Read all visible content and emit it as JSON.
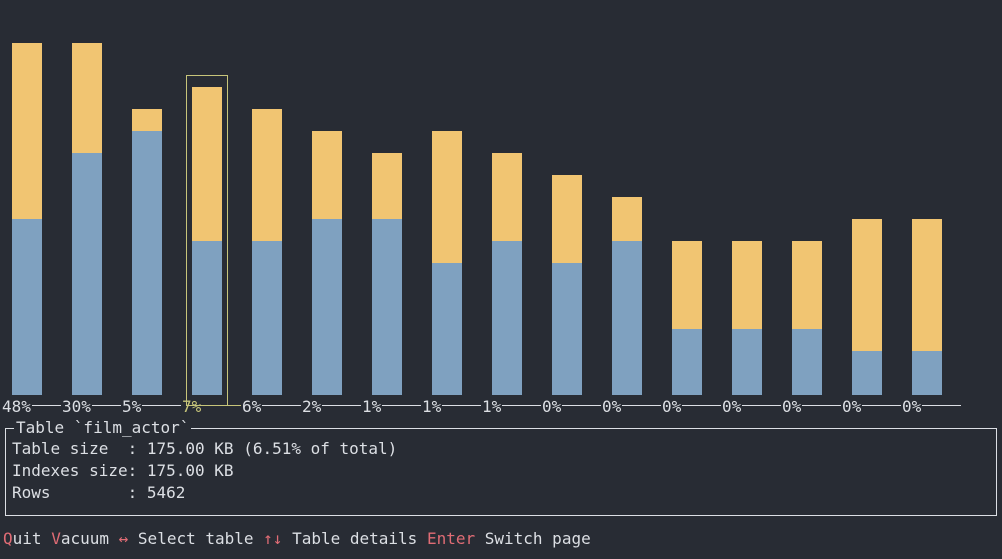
{
  "chart_data": {
    "type": "bar",
    "stacked": true,
    "bars": [
      {
        "label": "48%",
        "data": 8,
        "index": 8
      },
      {
        "label": "30%",
        "data": 11,
        "index": 5
      },
      {
        "label": "5%",
        "data": 12,
        "index": 1
      },
      {
        "label": "7%",
        "data": 7,
        "index": 7
      },
      {
        "label": "6%",
        "data": 7,
        "index": 6
      },
      {
        "label": "2%",
        "data": 8,
        "index": 4
      },
      {
        "label": "1%",
        "data": 8,
        "index": 3
      },
      {
        "label": "1%",
        "data": 6,
        "index": 6
      },
      {
        "label": "1%",
        "data": 7,
        "index": 4
      },
      {
        "label": "0%",
        "data": 6,
        "index": 4
      },
      {
        "label": "0%",
        "data": 7,
        "index": 2
      },
      {
        "label": "0%",
        "data": 3,
        "index": 4
      },
      {
        "label": "0%",
        "data": 3,
        "index": 4
      },
      {
        "label": "0%",
        "data": 3,
        "index": 4
      },
      {
        "label": "0%",
        "data": 2,
        "index": 6
      },
      {
        "label": "0%",
        "data": 2,
        "index": 6
      }
    ],
    "selected_index": 3,
    "colors": {
      "data": "#7fa1c0",
      "index": "#f1c572",
      "selected": "#c7c57a"
    }
  },
  "details": {
    "title": "Table `film_actor`",
    "table_size": "Table size  : 175.00 KB (6.51% of total)",
    "indexes_size": "Indexes size: 175.00 KB",
    "rows": "Rows        : 5462"
  },
  "footer": {
    "quit_key": "Q",
    "quit_rest": "uit",
    "vacuum_key": "V",
    "vacuum_rest": "acuum",
    "select_key": "↔",
    "select_label": "Select table",
    "details_key": "↑↓",
    "details_label": "Table details",
    "enter_key": "Enter",
    "enter_label": "Switch page"
  }
}
